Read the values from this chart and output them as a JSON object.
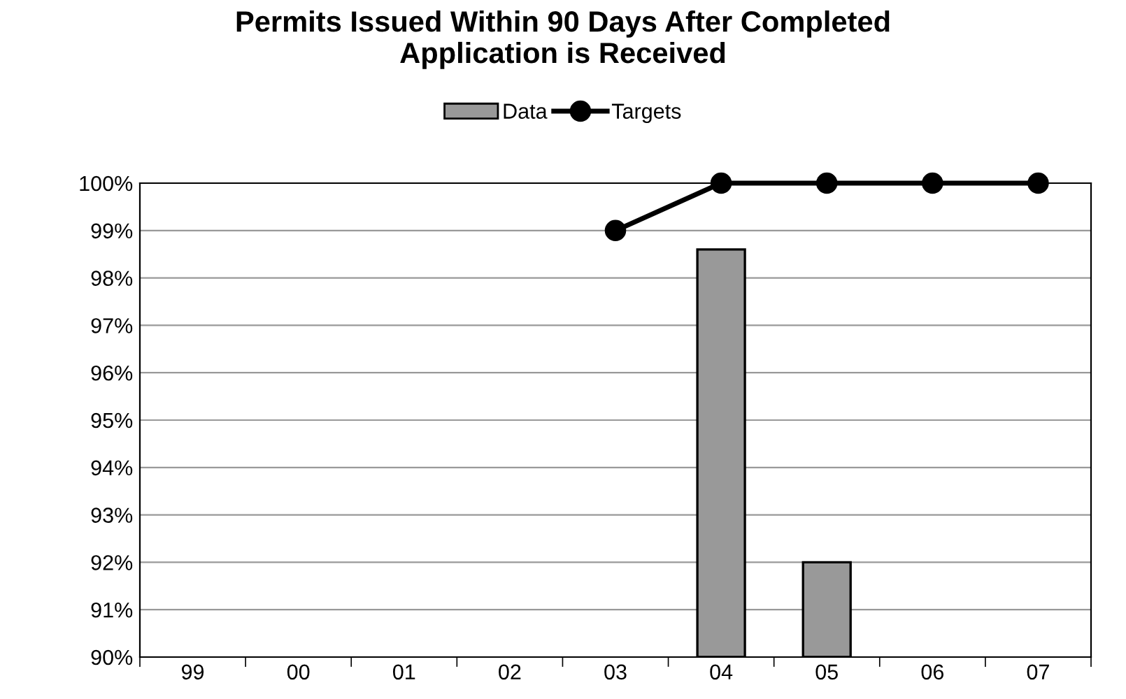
{
  "chart_data": {
    "type": "bar",
    "title": "Permits Issued Within 90 Days After Completed\nApplication is Received",
    "categories": [
      "99",
      "00",
      "01",
      "02",
      "03",
      "04",
      "05",
      "06",
      "07"
    ],
    "series": [
      {
        "name": "Data",
        "color": "#999999",
        "values": [
          null,
          null,
          null,
          null,
          null,
          98.6,
          92,
          null,
          null
        ]
      },
      {
        "name": "Targets",
        "type": "line",
        "color": "#000000",
        "marker": "circle",
        "values": [
          null,
          null,
          null,
          null,
          99,
          100,
          100,
          100,
          100
        ]
      }
    ],
    "ylim": [
      90,
      100
    ],
    "yticks": [
      {
        "value": 90,
        "label": "90%"
      },
      {
        "value": 91,
        "label": "91%"
      },
      {
        "value": 92,
        "label": "92%"
      },
      {
        "value": 93,
        "label": "93%"
      },
      {
        "value": 94,
        "label": "94%"
      },
      {
        "value": 95,
        "label": "95%"
      },
      {
        "value": 96,
        "label": "96%"
      },
      {
        "value": 97,
        "label": "97%"
      },
      {
        "value": 98,
        "label": "98%"
      },
      {
        "value": 99,
        "label": "99%"
      },
      {
        "value": 100,
        "label": "100%"
      }
    ],
    "grid": "y",
    "legend": "top"
  }
}
